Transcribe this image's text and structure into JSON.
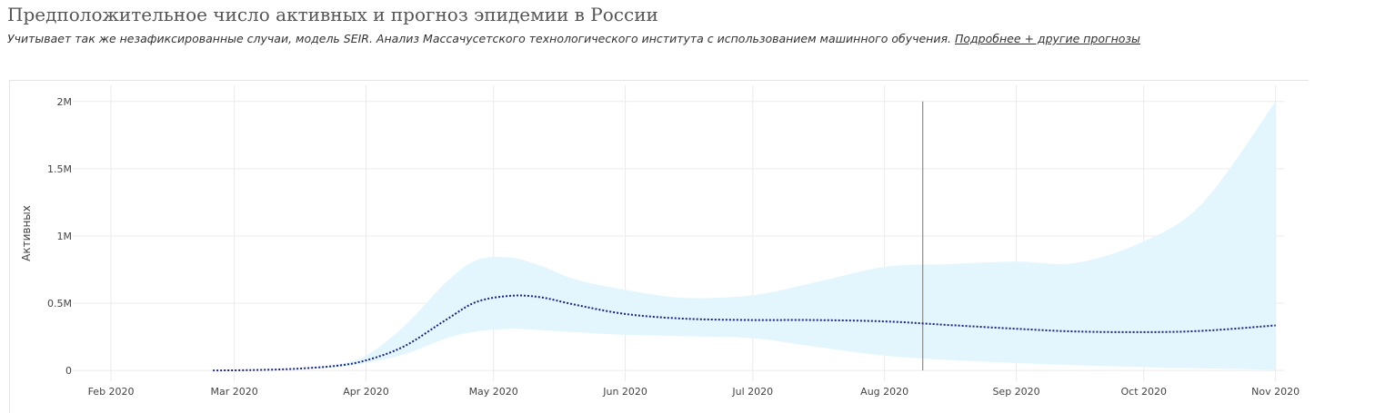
{
  "header": {
    "title": "Предположительное число активных и прогноз эпидемии в России",
    "subtitle": "Учитывает так же незафиксированные случаи, модель SEIR. Анализ Массачусетского технологического института с использованием машинного обучения.",
    "link": "Подробнее + другие прогнозы"
  },
  "chart_data": {
    "type": "line",
    "title": "Предположительное число активных и прогноз эпидемии в России",
    "xlabel": "",
    "ylabel": "Активных",
    "x_ticks": [
      "Feb 2020",
      "Mar 2020",
      "Apr 2020",
      "May 2020",
      "Jun 2020",
      "Jul 2020",
      "Aug 2020",
      "Sep 2020",
      "Oct 2020",
      "Nov 2020"
    ],
    "y_ticks": [
      "0",
      "0.5M",
      "1M",
      "1.5M",
      "2M"
    ],
    "xlim": [
      "2020-01-23",
      "2020-11-03"
    ],
    "ylim": [
      -80000,
      2120000
    ],
    "grid": true,
    "today_marker": "2020-08-10",
    "colors": {
      "line": "#1a237e",
      "band": "#e3f6fd",
      "grid": "#ebebeb",
      "marker": "#777777"
    },
    "series": [
      {
        "style": "dotted",
        "x": [
          "2020-02-25",
          "2020-03-05",
          "2020-03-15",
          "2020-03-25",
          "2020-04-01",
          "2020-04-10",
          "2020-04-20",
          "2020-04-27",
          "2020-05-05",
          "2020-05-12",
          "2020-05-20",
          "2020-06-01",
          "2020-06-15",
          "2020-07-01",
          "2020-07-15",
          "2020-08-01",
          "2020-08-15",
          "2020-09-01",
          "2020-09-15",
          "2020-10-01",
          "2020-10-15",
          "2020-11-01"
        ],
        "y": [
          0,
          3000,
          12000,
          35000,
          75000,
          180000,
          380000,
          510000,
          555000,
          545000,
          490000,
          420000,
          385000,
          375000,
          375000,
          365000,
          340000,
          310000,
          290000,
          285000,
          295000,
          335000
        ]
      }
    ],
    "band": {
      "x": [
        "2020-03-15",
        "2020-03-25",
        "2020-04-01",
        "2020-04-10",
        "2020-04-20",
        "2020-04-27",
        "2020-05-05",
        "2020-05-12",
        "2020-05-20",
        "2020-06-01",
        "2020-06-15",
        "2020-07-01",
        "2020-07-15",
        "2020-08-01",
        "2020-08-15",
        "2020-09-01",
        "2020-09-15",
        "2020-10-01",
        "2020-10-15",
        "2020-11-01"
      ],
      "upper": [
        15000,
        45000,
        110000,
        330000,
        660000,
        820000,
        840000,
        780000,
        680000,
        600000,
        540000,
        560000,
        650000,
        770000,
        790000,
        810000,
        800000,
        960000,
        1250000,
        2000000
      ],
      "lower": [
        10000,
        25000,
        55000,
        120000,
        240000,
        290000,
        310000,
        300000,
        285000,
        265000,
        255000,
        240000,
        180000,
        110000,
        80000,
        55000,
        40000,
        25000,
        15000,
        5000
      ]
    }
  }
}
